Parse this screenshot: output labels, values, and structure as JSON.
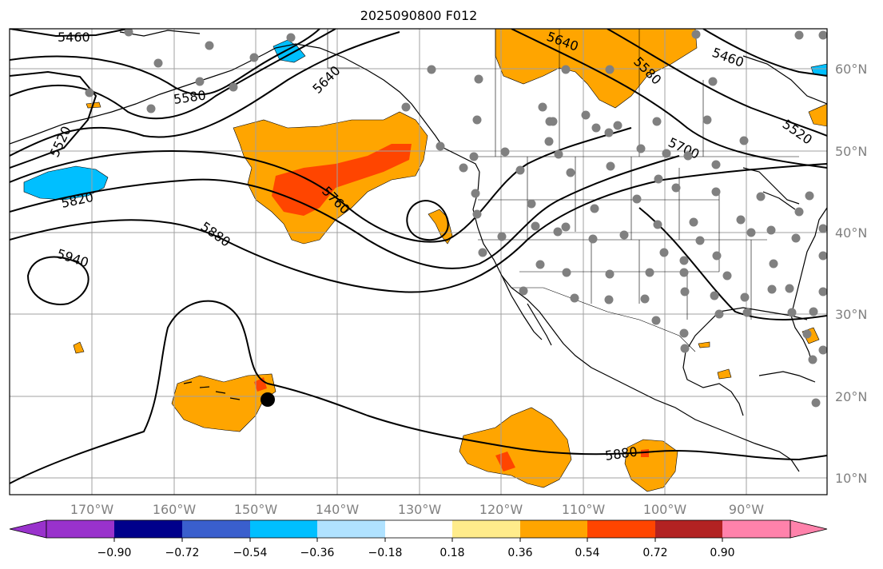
{
  "title": "2025090800 F012",
  "map": {
    "lon_range": [
      -180,
      -80
    ],
    "lat_range": [
      8,
      65
    ],
    "lon_ticks": [
      "170°W",
      "160°W",
      "150°W",
      "140°W",
      "130°W",
      "120°W",
      "110°W",
      "100°W",
      "90°W"
    ],
    "lat_ticks": [
      "10°N",
      "20°N",
      "30°N",
      "40°N",
      "50°N",
      "60°N"
    ],
    "contour_labels": [
      "5460",
      "5640",
      "5580",
      "5460",
      "5580",
      "5640",
      "5520",
      "5520",
      "5700",
      "5820",
      "5760",
      "5880",
      "5940",
      "5880"
    ],
    "filled_field_colors": {
      "positive_low": "#ffa500",
      "positive_mid": "#ff4500",
      "positive_high": "#b22222",
      "negative_low": "#00bfff",
      "negative_mid": "#3a5fcd"
    }
  },
  "colorbar": {
    "colors": [
      "#9932cc",
      "#00008b",
      "#3a5fcd",
      "#00bfff",
      "#b0e2ff",
      "#ffffff",
      "#ffec8b",
      "#ffa500",
      "#ff4500",
      "#b22222",
      "#ff82ab"
    ],
    "tick_labels": [
      "−0.90",
      "−0.72",
      "−0.54",
      "−0.36",
      "−0.18",
      "0.18",
      "0.36",
      "0.54",
      "0.72",
      "0.90"
    ]
  }
}
